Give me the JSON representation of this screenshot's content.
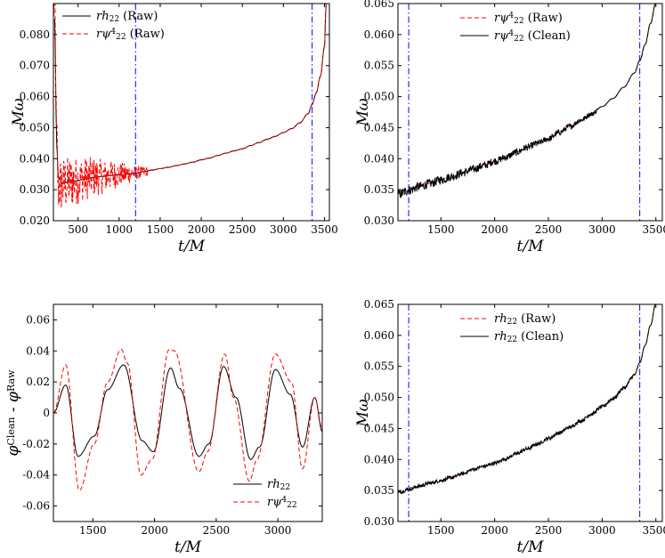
{
  "colors": {
    "raw": "#ff0000",
    "clean": "#000000",
    "marker": "#0000ff"
  },
  "chart_data": [
    {
      "type": "line",
      "id": "top-left",
      "xlabel": "t/M",
      "ylabel": "Mω",
      "xlim": [
        200,
        3560
      ],
      "ylim": [
        0.02,
        0.09
      ],
      "xticks": [
        500,
        1000,
        1500,
        2000,
        2500,
        3000,
        3500
      ],
      "yticks": [
        0.02,
        0.03,
        0.04,
        0.05,
        0.06,
        0.07,
        0.08
      ],
      "vlines": [
        1200,
        3350
      ],
      "legend": "top-left",
      "series": [
        {
          "name": "rh22 (Raw)",
          "style": "solid",
          "color": "#000000",
          "x": [
            215,
            240,
            260,
            300,
            400,
            500,
            600,
            700,
            800,
            900,
            1000,
            1100,
            1200,
            1300,
            1400,
            1500,
            1600,
            1700,
            1800,
            1900,
            2000,
            2100,
            2200,
            2300,
            2400,
            2500,
            2600,
            2700,
            2800,
            2900,
            3000,
            3100,
            3200,
            3300,
            3350,
            3400,
            3450,
            3500,
            3520
          ],
          "y": [
            0.085,
            0.045,
            0.034,
            0.032,
            0.0325,
            0.033,
            0.0335,
            0.034,
            0.0343,
            0.0346,
            0.0348,
            0.035,
            0.0353,
            0.0358,
            0.0363,
            0.0368,
            0.0372,
            0.0378,
            0.0383,
            0.0389,
            0.0396,
            0.0402,
            0.041,
            0.0418,
            0.0425,
            0.0432,
            0.0442,
            0.0452,
            0.0462,
            0.0472,
            0.0484,
            0.0497,
            0.0515,
            0.0545,
            0.0575,
            0.0612,
            0.0665,
            0.076,
            0.09
          ]
        },
        {
          "name": "rψ4 22 (Raw)",
          "style": "dashed",
          "color": "#ff0000",
          "x": [
            215,
            240,
            260,
            300,
            400,
            500,
            600,
            700,
            800,
            900,
            1000,
            1100,
            1200,
            1300,
            1400,
            1500,
            1600,
            1700,
            1800,
            1900,
            2000,
            2100,
            2200,
            2300,
            2400,
            2500,
            2600,
            2700,
            2800,
            2900,
            3000,
            3100,
            3200,
            3300,
            3350,
            3400,
            3450,
            3500,
            3520
          ],
          "y": [
            0.09,
            0.046,
            0.031,
            0.0315,
            0.0325,
            0.033,
            0.0337,
            0.0341,
            0.0342,
            0.0347,
            0.0349,
            0.0351,
            0.0354,
            0.0357,
            0.0364,
            0.0368,
            0.0373,
            0.0377,
            0.0384,
            0.0388,
            0.0397,
            0.0401,
            0.0411,
            0.0417,
            0.0426,
            0.0431,
            0.0443,
            0.0451,
            0.0463,
            0.0471,
            0.0485,
            0.0496,
            0.0516,
            0.0544,
            0.0576,
            0.0611,
            0.0666,
            0.0758,
            0.09
          ],
          "noise": {
            "x_from": 200,
            "x_to": 1350,
            "amp_start": 0.01,
            "amp_end": 0.0015
          }
        }
      ]
    },
    {
      "type": "line",
      "id": "top-right",
      "xlabel": "t/M",
      "ylabel": "Mω",
      "xlim": [
        1100,
        3560
      ],
      "ylim": [
        0.03,
        0.065
      ],
      "xticks": [
        1500,
        2000,
        2500,
        3000,
        3500
      ],
      "yticks": [
        0.03,
        0.035,
        0.04,
        0.045,
        0.05,
        0.055,
        0.06,
        0.065
      ],
      "vlines": [
        1200,
        3350
      ],
      "legend": "top-center",
      "series": [
        {
          "name": "rψ4 22 (Raw)",
          "style": "dashed",
          "color": "#ff0000",
          "x": [
            1110,
            1200,
            1300,
            1400,
            1500,
            1600,
            1700,
            1800,
            1900,
            2000,
            2100,
            2200,
            2300,
            2400,
            2500,
            2600,
            2700,
            2800,
            2900,
            3000,
            3100,
            3200,
            3300,
            3350,
            3400,
            3450,
            3500,
            3520
          ],
          "y": [
            0.0343,
            0.0349,
            0.0355,
            0.036,
            0.0366,
            0.0371,
            0.0377,
            0.0383,
            0.0389,
            0.0396,
            0.0402,
            0.041,
            0.0418,
            0.0425,
            0.0432,
            0.0442,
            0.0452,
            0.0462,
            0.0472,
            0.0484,
            0.0497,
            0.0515,
            0.0538,
            0.0558,
            0.0584,
            0.0618,
            0.0652,
            0.0665
          ]
        },
        {
          "name": "rψ4 22 (Clean)",
          "style": "solid",
          "color": "#000000",
          "x": [
            1110,
            1200,
            1300,
            1400,
            1500,
            1600,
            1700,
            1800,
            1900,
            2000,
            2100,
            2200,
            2300,
            2400,
            2500,
            2600,
            2700,
            2800,
            2900,
            3000,
            3100,
            3200,
            3300,
            3350,
            3400,
            3450,
            3500,
            3520
          ],
          "y": [
            0.0343,
            0.0349,
            0.0355,
            0.036,
            0.0366,
            0.0371,
            0.0377,
            0.0383,
            0.0389,
            0.0396,
            0.0402,
            0.041,
            0.0418,
            0.0425,
            0.0432,
            0.0442,
            0.0452,
            0.0462,
            0.0472,
            0.0484,
            0.0497,
            0.0515,
            0.0538,
            0.0558,
            0.0584,
            0.0618,
            0.0652,
            0.0665
          ],
          "noise": {
            "x_from": 1100,
            "x_to": 2950,
            "amp_start": 0.0008,
            "amp_end": 0.0004
          }
        }
      ]
    },
    {
      "type": "line",
      "id": "bottom-left",
      "xlabel": "t/M",
      "ylabel": "φClean - φRaw",
      "xlim": [
        1180,
        3360
      ],
      "ylim": [
        -0.07,
        0.07
      ],
      "xticks": [
        1500,
        2000,
        2500,
        3000
      ],
      "yticks": [
        -0.06,
        -0.04,
        -0.02,
        0,
        0.02,
        0.04,
        0.06
      ],
      "legend": "bottom-right",
      "series": [
        {
          "name": "rh22",
          "style": "solid",
          "color": "#000000",
          "x": [
            1180,
            1280,
            1380,
            1510,
            1620,
            1750,
            1900,
            1990,
            2130,
            2200,
            2360,
            2440,
            2560,
            2660,
            2780,
            2850,
            2980,
            3100,
            3200,
            3300,
            3360
          ],
          "y": [
            0.0,
            0.018,
            -0.028,
            -0.015,
            0.015,
            0.031,
            -0.018,
            -0.025,
            0.029,
            0.016,
            -0.028,
            -0.02,
            0.03,
            0.01,
            -0.03,
            -0.022,
            0.028,
            0.012,
            -0.022,
            0.01,
            -0.012
          ]
        },
        {
          "name": "rψ4 22",
          "style": "dashed",
          "color": "#ff0000",
          "x": [
            1180,
            1280,
            1390,
            1510,
            1620,
            1730,
            1780,
            1890,
            1980,
            2120,
            2160,
            2360,
            2430,
            2570,
            2640,
            2770,
            2830,
            2980,
            3110,
            3200,
            3300,
            3360
          ],
          "y": [
            0.0,
            0.031,
            -0.05,
            -0.02,
            0.02,
            0.041,
            0.032,
            -0.04,
            -0.03,
            0.041,
            0.04,
            -0.038,
            -0.025,
            0.038,
            0.01,
            -0.044,
            -0.03,
            0.038,
            0.02,
            -0.036,
            0.01,
            -0.01
          ]
        }
      ]
    },
    {
      "type": "line",
      "id": "bottom-right",
      "xlabel": "t/M",
      "ylabel": "Mω",
      "xlim": [
        1100,
        3560
      ],
      "ylim": [
        0.03,
        0.065
      ],
      "xticks": [
        1500,
        2000,
        2500,
        3000,
        3500
      ],
      "yticks": [
        0.03,
        0.035,
        0.04,
        0.045,
        0.05,
        0.055,
        0.06,
        0.065
      ],
      "vlines": [
        1200,
        3350
      ],
      "legend": "top-center",
      "series": [
        {
          "name": "rh22 (Raw)",
          "style": "dashed",
          "color": "#ff0000",
          "x": [
            1110,
            1200,
            1300,
            1400,
            1500,
            1600,
            1700,
            1800,
            1900,
            2000,
            2100,
            2200,
            2300,
            2400,
            2500,
            2600,
            2700,
            2800,
            2900,
            3000,
            3100,
            3200,
            3300,
            3350,
            3400,
            3450,
            3500,
            3520
          ],
          "y": [
            0.0347,
            0.0352,
            0.0357,
            0.0362,
            0.0366,
            0.0371,
            0.0377,
            0.0384,
            0.0389,
            0.0394,
            0.0401,
            0.0409,
            0.0417,
            0.0425,
            0.0434,
            0.0443,
            0.0452,
            0.0462,
            0.0473,
            0.0485,
            0.0498,
            0.0515,
            0.0536,
            0.0556,
            0.0584,
            0.0616,
            0.0652,
            0.0665
          ]
        },
        {
          "name": "rh22 (Clean)",
          "style": "solid",
          "color": "#000000",
          "x": [
            1110,
            1200,
            1300,
            1400,
            1500,
            1600,
            1700,
            1800,
            1900,
            2000,
            2100,
            2200,
            2300,
            2400,
            2500,
            2600,
            2700,
            2800,
            2900,
            3000,
            3100,
            3200,
            3300,
            3350,
            3400,
            3450,
            3500,
            3520
          ],
          "y": [
            0.0347,
            0.0352,
            0.0357,
            0.0362,
            0.0366,
            0.0371,
            0.0377,
            0.0384,
            0.0389,
            0.0394,
            0.0401,
            0.0409,
            0.0417,
            0.0425,
            0.0434,
            0.0443,
            0.0452,
            0.0462,
            0.0473,
            0.0485,
            0.0498,
            0.0515,
            0.0536,
            0.0556,
            0.0584,
            0.0616,
            0.0652,
            0.0665
          ],
          "noise": {
            "x_from": 1100,
            "x_to": 3300,
            "amp_start": 0.0003,
            "amp_end": 0.0003
          }
        }
      ]
    }
  ]
}
